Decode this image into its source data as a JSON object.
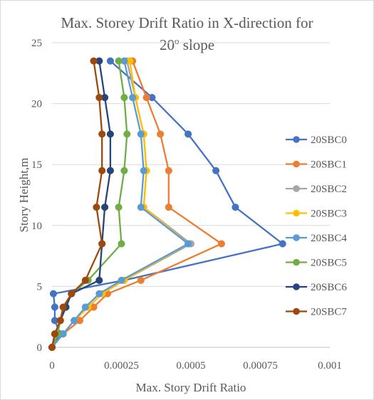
{
  "chart_data": {
    "type": "scatter",
    "title_line1": "Max. Storey Drift Ratio in X-direction for",
    "title_line2_main": "20",
    "title_line2_sup": "o",
    "title_line2_rest": " slope",
    "xlabel": "Max. Story Drift Ratio",
    "ylabel": "Story Height,m",
    "xlim": [
      0,
      0.001
    ],
    "ylim": [
      0,
      25
    ],
    "x_ticks": [
      "0",
      "0.00025",
      "0.0005",
      "0.00075",
      "0.001"
    ],
    "y_ticks": [
      "0",
      "5",
      "10",
      "15",
      "20",
      "25"
    ],
    "grid": "horizontal",
    "legend_position": "right",
    "series": [
      {
        "name": "20SBC0",
        "color": "#4472C4",
        "points": [
          [
            0,
            0
          ],
          [
            3e-05,
            1.1
          ],
          [
            1e-05,
            2.2
          ],
          [
            1e-05,
            3.3
          ],
          [
            5e-06,
            4.4
          ],
          [
            0.00026,
            5.5
          ],
          [
            0.00083,
            8.5
          ],
          [
            0.00066,
            11.5
          ],
          [
            0.00059,
            14.5
          ],
          [
            0.00049,
            17.5
          ],
          [
            0.00036,
            20.5
          ],
          [
            0.00021,
            23.5
          ]
        ]
      },
      {
        "name": "20SBC1",
        "color": "#ED7D31",
        "points": [
          [
            0,
            0
          ],
          [
            4e-05,
            1.1
          ],
          [
            0.0001,
            2.2
          ],
          [
            0.00015,
            3.3
          ],
          [
            0.0002,
            4.4
          ],
          [
            0.00032,
            5.5
          ],
          [
            0.00061,
            8.5
          ],
          [
            0.00042,
            11.5
          ],
          [
            0.00042,
            14.5
          ],
          [
            0.00039,
            17.5
          ],
          [
            0.00034,
            20.5
          ],
          [
            0.00029,
            23.5
          ]
        ]
      },
      {
        "name": "20SBC2",
        "color": "#A5A5A5",
        "points": [
          [
            0,
            0
          ],
          [
            4e-05,
            1.1
          ],
          [
            8e-05,
            2.2
          ],
          [
            0.00013,
            3.3
          ],
          [
            0.00018,
            4.4
          ],
          [
            0.00026,
            5.5
          ],
          [
            0.0005,
            8.5
          ],
          [
            0.00033,
            11.5
          ],
          [
            0.00034,
            14.5
          ],
          [
            0.00033,
            17.5
          ],
          [
            0.0003,
            20.5
          ],
          [
            0.00027,
            23.5
          ]
        ]
      },
      {
        "name": "20SBC3",
        "color": "#FFC000",
        "points": [
          [
            0,
            0
          ],
          [
            4e-05,
            1.1
          ],
          [
            8e-05,
            2.2
          ],
          [
            0.00013,
            3.3
          ],
          [
            0.00018,
            4.4
          ],
          [
            0.00026,
            5.5
          ],
          [
            0.00049,
            8.5
          ],
          [
            0.00033,
            11.5
          ],
          [
            0.00034,
            14.5
          ],
          [
            0.00033,
            17.5
          ],
          [
            0.0003,
            20.5
          ],
          [
            0.00028,
            23.5
          ]
        ]
      },
      {
        "name": "20SBC4",
        "color": "#5B9BD5",
        "points": [
          [
            0,
            0
          ],
          [
            4e-05,
            1.1
          ],
          [
            8e-05,
            2.2
          ],
          [
            0.00012,
            3.3
          ],
          [
            0.00017,
            4.4
          ],
          [
            0.00025,
            5.5
          ],
          [
            0.00049,
            8.5
          ],
          [
            0.00032,
            11.5
          ],
          [
            0.00033,
            14.5
          ],
          [
            0.00032,
            17.5
          ],
          [
            0.00029,
            20.5
          ],
          [
            0.00026,
            23.5
          ]
        ]
      },
      {
        "name": "20SBC5",
        "color": "#70AD47",
        "points": [
          [
            0,
            0
          ],
          [
            2e-05,
            1.1
          ],
          [
            3e-05,
            2.2
          ],
          [
            5e-05,
            3.3
          ],
          [
            7e-05,
            4.4
          ],
          [
            0.00013,
            5.5
          ],
          [
            0.00025,
            8.5
          ],
          [
            0.00024,
            11.5
          ],
          [
            0.00026,
            14.5
          ],
          [
            0.00027,
            17.5
          ],
          [
            0.00026,
            20.5
          ],
          [
            0.00024,
            23.5
          ]
        ]
      },
      {
        "name": "20SBC6",
        "color": "#264478",
        "points": [
          [
            0,
            0
          ],
          [
            1e-05,
            1.1
          ],
          [
            3e-05,
            2.2
          ],
          [
            5e-05,
            3.3
          ],
          [
            7e-05,
            4.4
          ],
          [
            0.00017,
            5.5
          ],
          [
            0.00018,
            8.5
          ],
          [
            0.00019,
            11.5
          ],
          [
            0.00021,
            14.5
          ],
          [
            0.00021,
            17.5
          ],
          [
            0.00019,
            20.5
          ],
          [
            0.00017,
            23.5
          ]
        ]
      },
      {
        "name": "20SBC7",
        "color": "#9E480E",
        "points": [
          [
            0,
            0
          ],
          [
            1e-05,
            1.1
          ],
          [
            3e-05,
            2.2
          ],
          [
            4e-05,
            3.3
          ],
          [
            7e-05,
            4.4
          ],
          [
            0.00012,
            5.5
          ],
          [
            0.00018,
            8.5
          ],
          [
            0.00016,
            11.5
          ],
          [
            0.00018,
            14.5
          ],
          [
            0.00018,
            17.5
          ],
          [
            0.00017,
            20.5
          ],
          [
            0.00015,
            23.5
          ]
        ]
      }
    ]
  }
}
